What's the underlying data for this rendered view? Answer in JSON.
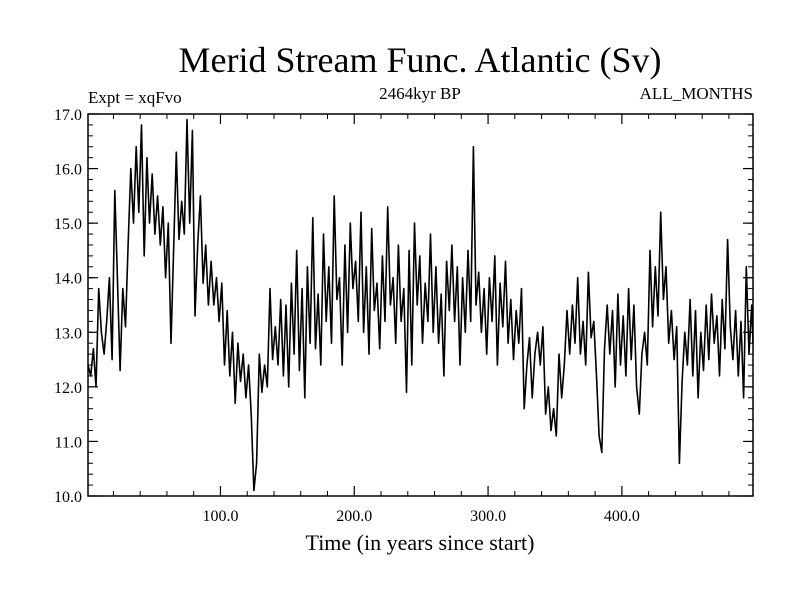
{
  "chart_data": {
    "type": "line",
    "title": "Merid Stream Func. Atlantic (Sv)",
    "subtitle_left": "Expt = xqFvo",
    "subtitle_center": "2464kyr BP",
    "subtitle_right": "ALL_MONTHS",
    "xlabel": "Time (in years since start)",
    "ylabel": "",
    "xlim": [
      1,
      498
    ],
    "ylim": [
      10.0,
      17.0
    ],
    "x_ticks": [
      {
        "value": 100,
        "label": "100.0"
      },
      {
        "value": 200,
        "label": "200.0"
      },
      {
        "value": 300,
        "label": "300.0"
      },
      {
        "value": 400,
        "label": "400.0"
      }
    ],
    "y_ticks": [
      {
        "value": 10,
        "label": "10.0"
      },
      {
        "value": 11,
        "label": "11.0"
      },
      {
        "value": 12,
        "label": "12.0"
      },
      {
        "value": 13,
        "label": "13.0"
      },
      {
        "value": 14,
        "label": "14.0"
      },
      {
        "value": 15,
        "label": "15.0"
      },
      {
        "value": 16,
        "label": "16.0"
      },
      {
        "value": 17,
        "label": "17.0"
      }
    ],
    "series": [
      {
        "name": "Merid Stream Func. Atlantic",
        "points": [
          [
            1,
            12.4
          ],
          [
            3,
            12.2
          ],
          [
            5,
            12.7
          ],
          [
            7,
            12.0
          ],
          [
            9,
            13.8
          ],
          [
            11,
            13.0
          ],
          [
            13,
            12.6
          ],
          [
            15,
            13.2
          ],
          [
            17,
            14.0
          ],
          [
            19,
            12.5
          ],
          [
            21,
            15.6
          ],
          [
            23,
            14.0
          ],
          [
            25,
            12.3
          ],
          [
            27,
            13.8
          ],
          [
            29,
            13.1
          ],
          [
            31,
            14.6
          ],
          [
            33,
            16.0
          ],
          [
            35,
            15.0
          ],
          [
            37,
            16.4
          ],
          [
            39,
            15.2
          ],
          [
            41,
            16.8
          ],
          [
            43,
            14.4
          ],
          [
            45,
            16.2
          ],
          [
            47,
            15.0
          ],
          [
            49,
            15.9
          ],
          [
            51,
            14.8
          ],
          [
            53,
            15.5
          ],
          [
            55,
            14.6
          ],
          [
            57,
            15.3
          ],
          [
            59,
            14.0
          ],
          [
            61,
            15.0
          ],
          [
            63,
            12.8
          ],
          [
            65,
            14.5
          ],
          [
            67,
            16.3
          ],
          [
            69,
            14.7
          ],
          [
            71,
            15.4
          ],
          [
            73,
            14.8
          ],
          [
            75,
            16.9
          ],
          [
            77,
            15.0
          ],
          [
            79,
            16.7
          ],
          [
            81,
            13.3
          ],
          [
            83,
            14.6
          ],
          [
            85,
            15.5
          ],
          [
            87,
            13.9
          ],
          [
            89,
            14.6
          ],
          [
            91,
            13.5
          ],
          [
            93,
            14.3
          ],
          [
            95,
            13.5
          ],
          [
            97,
            14.0
          ],
          [
            99,
            13.2
          ],
          [
            101,
            13.9
          ],
          [
            103,
            12.4
          ],
          [
            105,
            13.4
          ],
          [
            107,
            12.2
          ],
          [
            109,
            13.0
          ],
          [
            111,
            11.7
          ],
          [
            113,
            12.8
          ],
          [
            115,
            12.1
          ],
          [
            117,
            12.6
          ],
          [
            119,
            11.8
          ],
          [
            121,
            12.4
          ],
          [
            123,
            11.5
          ],
          [
            125,
            10.1
          ],
          [
            127,
            10.6
          ],
          [
            129,
            12.6
          ],
          [
            131,
            11.9
          ],
          [
            133,
            12.4
          ],
          [
            135,
            12.0
          ],
          [
            137,
            13.8
          ],
          [
            139,
            12.5
          ],
          [
            141,
            13.1
          ],
          [
            143,
            12.4
          ],
          [
            145,
            13.6
          ],
          [
            147,
            12.2
          ],
          [
            149,
            13.5
          ],
          [
            151,
            12.0
          ],
          [
            153,
            13.9
          ],
          [
            155,
            12.6
          ],
          [
            157,
            14.5
          ],
          [
            159,
            12.3
          ],
          [
            161,
            13.8
          ],
          [
            163,
            11.8
          ],
          [
            165,
            14.2
          ],
          [
            167,
            12.8
          ],
          [
            169,
            15.1
          ],
          [
            171,
            12.7
          ],
          [
            173,
            13.7
          ],
          [
            175,
            12.4
          ],
          [
            177,
            14.8
          ],
          [
            179,
            13.2
          ],
          [
            181,
            14.2
          ],
          [
            183,
            12.8
          ],
          [
            185,
            15.5
          ],
          [
            187,
            13.6
          ],
          [
            189,
            14.0
          ],
          [
            191,
            12.4
          ],
          [
            193,
            14.6
          ],
          [
            195,
            13.0
          ],
          [
            197,
            15.0
          ],
          [
            199,
            13.8
          ],
          [
            201,
            14.3
          ],
          [
            203,
            13.2
          ],
          [
            205,
            15.2
          ],
          [
            207,
            13.0
          ],
          [
            209,
            14.2
          ],
          [
            211,
            12.6
          ],
          [
            213,
            14.9
          ],
          [
            215,
            13.4
          ],
          [
            217,
            13.9
          ],
          [
            219,
            12.7
          ],
          [
            221,
            14.4
          ],
          [
            223,
            13.2
          ],
          [
            225,
            15.3
          ],
          [
            227,
            13.5
          ],
          [
            229,
            14.0
          ],
          [
            231,
            12.8
          ],
          [
            233,
            14.6
          ],
          [
            235,
            13.2
          ],
          [
            237,
            13.8
          ],
          [
            239,
            11.9
          ],
          [
            241,
            14.5
          ],
          [
            243,
            12.4
          ],
          [
            245,
            15.0
          ],
          [
            247,
            13.5
          ],
          [
            249,
            14.4
          ],
          [
            251,
            12.8
          ],
          [
            253,
            13.9
          ],
          [
            255,
            13.2
          ],
          [
            257,
            14.8
          ],
          [
            259,
            13.0
          ],
          [
            261,
            14.2
          ],
          [
            263,
            12.8
          ],
          [
            265,
            13.7
          ],
          [
            267,
            12.2
          ],
          [
            269,
            14.3
          ],
          [
            271,
            13.4
          ],
          [
            273,
            14.6
          ],
          [
            275,
            13.2
          ],
          [
            277,
            14.2
          ],
          [
            279,
            12.4
          ],
          [
            281,
            14.0
          ],
          [
            283,
            13.0
          ],
          [
            285,
            14.5
          ],
          [
            287,
            13.2
          ],
          [
            289,
            16.4
          ],
          [
            291,
            13.5
          ],
          [
            293,
            14.1
          ],
          [
            295,
            13.0
          ],
          [
            297,
            13.8
          ],
          [
            299,
            12.6
          ],
          [
            301,
            14.0
          ],
          [
            303,
            13.2
          ],
          [
            305,
            14.4
          ],
          [
            307,
            12.4
          ],
          [
            309,
            13.9
          ],
          [
            311,
            13.1
          ],
          [
            313,
            14.3
          ],
          [
            315,
            12.8
          ],
          [
            317,
            13.6
          ],
          [
            319,
            12.5
          ],
          [
            321,
            13.4
          ],
          [
            323,
            12.8
          ],
          [
            325,
            13.8
          ],
          [
            327,
            11.6
          ],
          [
            329,
            12.4
          ],
          [
            331,
            12.9
          ],
          [
            333,
            11.8
          ],
          [
            335,
            12.6
          ],
          [
            337,
            13.0
          ],
          [
            339,
            12.4
          ],
          [
            341,
            13.1
          ],
          [
            343,
            11.5
          ],
          [
            345,
            12.0
          ],
          [
            347,
            11.2
          ],
          [
            349,
            11.6
          ],
          [
            351,
            11.1
          ],
          [
            353,
            12.6
          ],
          [
            355,
            11.8
          ],
          [
            357,
            12.4
          ],
          [
            359,
            13.4
          ],
          [
            361,
            12.6
          ],
          [
            363,
            13.5
          ],
          [
            365,
            12.8
          ],
          [
            367,
            14.0
          ],
          [
            369,
            12.6
          ],
          [
            371,
            13.2
          ],
          [
            373,
            12.4
          ],
          [
            375,
            14.1
          ],
          [
            377,
            12.9
          ],
          [
            379,
            13.2
          ],
          [
            381,
            12.2
          ],
          [
            383,
            11.1
          ],
          [
            385,
            10.8
          ],
          [
            387,
            12.7
          ],
          [
            389,
            13.5
          ],
          [
            391,
            12.6
          ],
          [
            393,
            13.4
          ],
          [
            395,
            12.0
          ],
          [
            397,
            13.7
          ],
          [
            399,
            12.4
          ],
          [
            401,
            13.3
          ],
          [
            403,
            12.2
          ],
          [
            405,
            13.8
          ],
          [
            407,
            12.5
          ],
          [
            409,
            13.5
          ],
          [
            411,
            12.0
          ],
          [
            413,
            11.5
          ],
          [
            415,
            12.6
          ],
          [
            417,
            13.0
          ],
          [
            419,
            12.4
          ],
          [
            421,
            14.5
          ],
          [
            423,
            13.1
          ],
          [
            425,
            14.2
          ],
          [
            427,
            13.3
          ],
          [
            429,
            15.2
          ],
          [
            431,
            13.6
          ],
          [
            433,
            14.2
          ],
          [
            435,
            12.8
          ],
          [
            437,
            13.4
          ],
          [
            439,
            12.5
          ],
          [
            441,
            13.1
          ],
          [
            443,
            10.6
          ],
          [
            445,
            12.1
          ],
          [
            447,
            13.0
          ],
          [
            449,
            12.4
          ],
          [
            451,
            13.6
          ],
          [
            453,
            12.2
          ],
          [
            455,
            13.4
          ],
          [
            457,
            11.8
          ],
          [
            459,
            13.0
          ],
          [
            461,
            12.3
          ],
          [
            463,
            13.5
          ],
          [
            465,
            12.5
          ],
          [
            467,
            13.7
          ],
          [
            469,
            12.8
          ],
          [
            471,
            13.3
          ],
          [
            473,
            12.2
          ],
          [
            475,
            13.6
          ],
          [
            477,
            12.7
          ],
          [
            479,
            14.7
          ],
          [
            481,
            13.1
          ],
          [
            483,
            12.5
          ],
          [
            485,
            13.4
          ],
          [
            487,
            12.2
          ],
          [
            489,
            13.2
          ],
          [
            491,
            11.8
          ],
          [
            493,
            14.2
          ],
          [
            495,
            12.6
          ],
          [
            497,
            13.5
          ],
          [
            498,
            12.8
          ]
        ]
      }
    ]
  }
}
